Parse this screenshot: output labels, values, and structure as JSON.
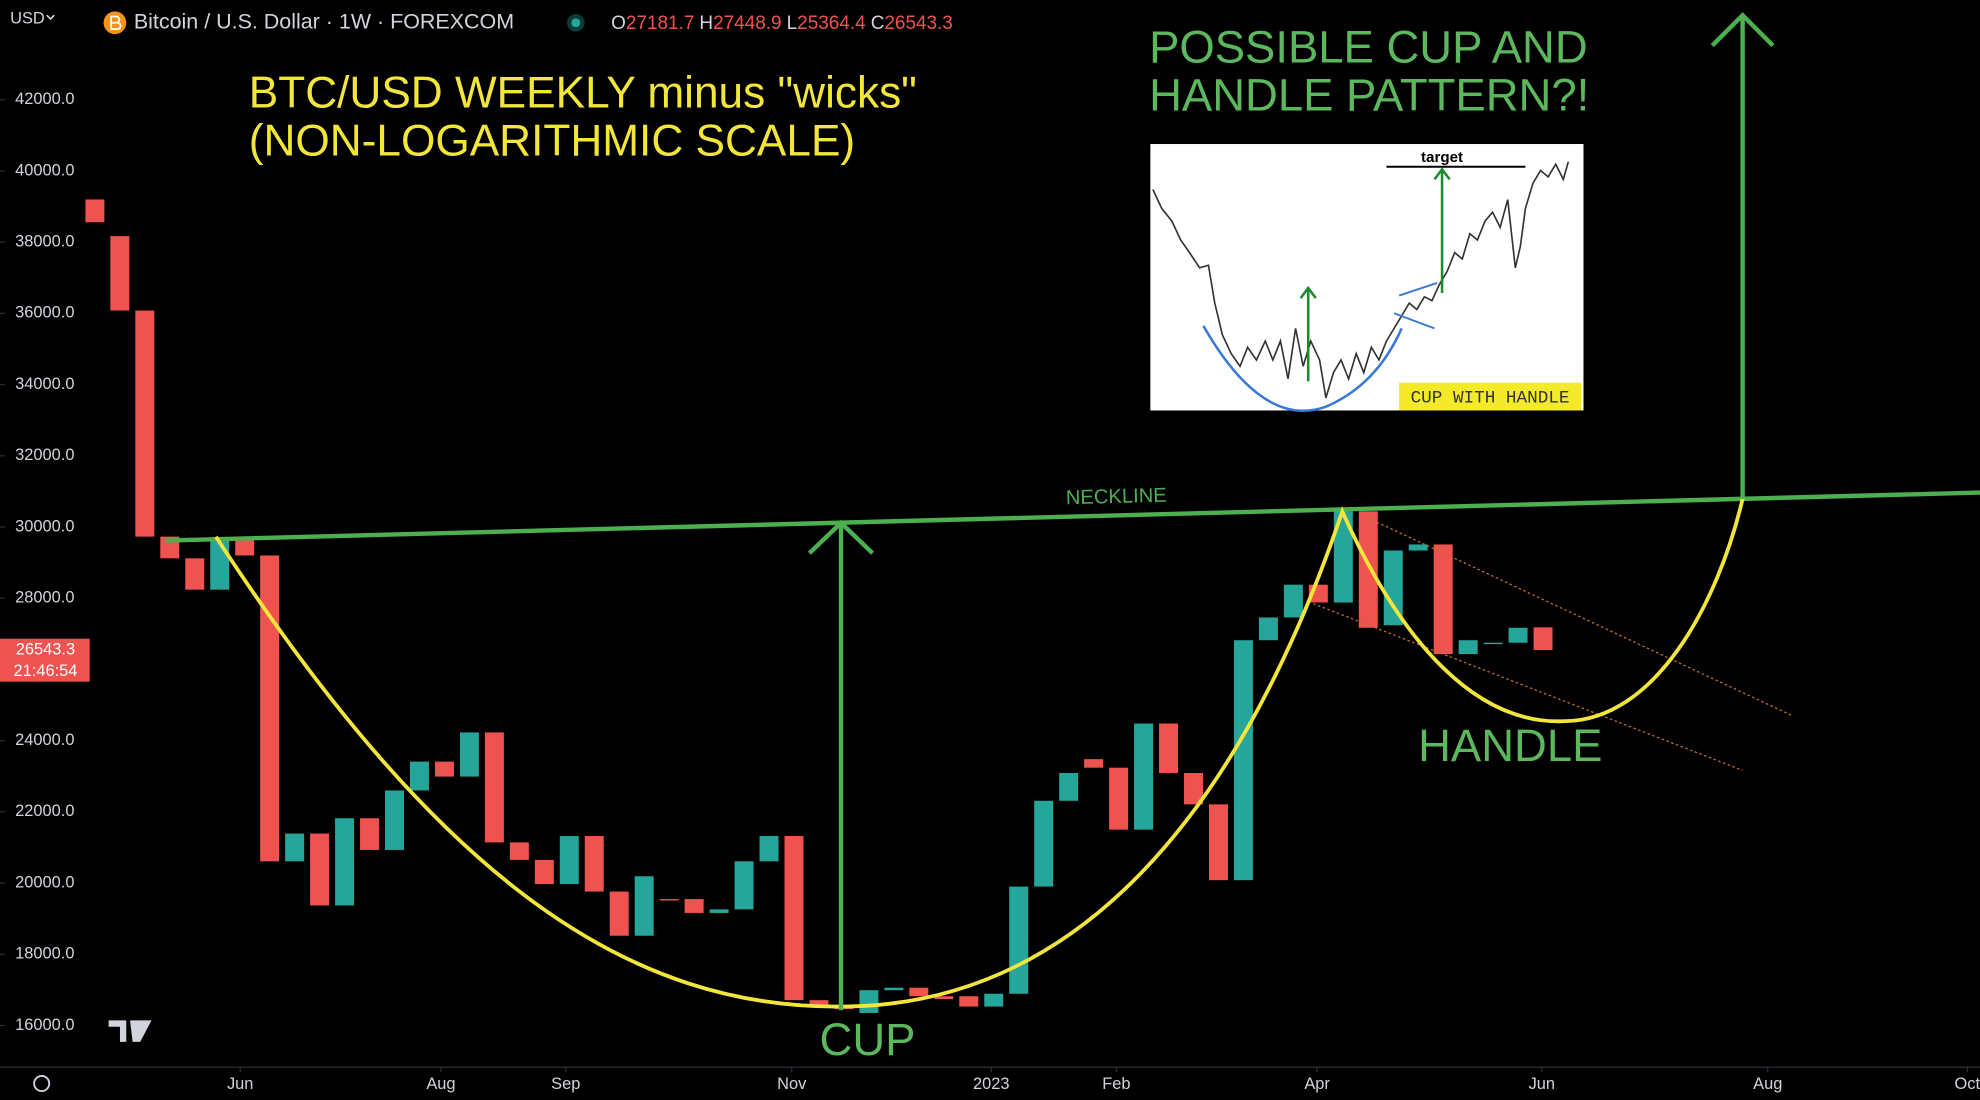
{
  "header": {
    "currency": "USD",
    "symbol": "Bitcoin / U.S. Dollar · 1W · FOREXCOM",
    "ohlc": [
      {
        "label": "O",
        "value": 27181.7
      },
      {
        "label": "H",
        "value": 27448.9
      },
      {
        "label": "L",
        "value": 25364.4
      },
      {
        "label": "C",
        "value": 26543.3
      }
    ]
  },
  "chart_data": {
    "type": "candlestick",
    "title": [
      "BTC/USD WEEKLY minus \"wicks\"",
      "(NON-LOGARITHMIC SCALE)"
    ],
    "pattern_note": [
      "POSSIBLE CUP AND",
      "HANDLE PATTERN?!"
    ],
    "annotations": {
      "neckline": "NECKLINE",
      "cup": "CUP",
      "handle": "HANDLE"
    },
    "inset": {
      "target": "target",
      "caption": "CUP WITH HANDLE"
    },
    "up_color": "#26a69a",
    "down_color": "#ef5350",
    "open": [
      39200,
      38170,
      36080,
      29730,
      29120,
      28240,
      29620,
      29200,
      20610,
      21390,
      19370,
      21820,
      20930,
      22600,
      23410,
      22990,
      24230,
      21140,
      20650,
      19970,
      21320,
      19760,
      18520,
      19550,
      19550,
      19160,
      19260,
      20610,
      21320,
      16710,
      16530,
      16350,
      16990,
      17060,
      16820,
      16820,
      16530,
      16890,
      19900,
      22310,
      23480,
      23240,
      21500,
      24480,
      23090,
      22210,
      20080,
      26820,
      27460,
      28380,
      27880,
      30440,
      27240,
      29340,
      29510,
      26430,
      26710,
      26750,
      27181.7
    ],
    "close": [
      38560,
      36080,
      29730,
      29120,
      28240,
      29620,
      29200,
      20610,
      21390,
      19370,
      21820,
      20930,
      22600,
      23410,
      22990,
      24230,
      21140,
      20650,
      19970,
      21320,
      19760,
      18520,
      20190,
      19510,
      19160,
      19260,
      20610,
      21320,
      16710,
      16530,
      16460,
      16990,
      17060,
      16820,
      16740,
      16530,
      16890,
      19900,
      22310,
      23090,
      23240,
      21500,
      24480,
      23090,
      22210,
      20080,
      26820,
      27460,
      28380,
      27880,
      30440,
      27170,
      29340,
      29510,
      26430,
      26820,
      26750,
      27170,
      26543.3
    ],
    "last_price": 26543.3,
    "countdown": "21:46:54",
    "ylim": [
      14830,
      44800
    ],
    "yticks": [
      {
        "value": 16000,
        "label": "16000.0"
      },
      {
        "value": 18000,
        "label": "18000.0"
      },
      {
        "value": 20000,
        "label": "20000.0"
      },
      {
        "value": 22000,
        "label": "22000.0"
      },
      {
        "value": 24000,
        "label": "24000.0"
      },
      {
        "value": 26000,
        "label": "26000.0"
      },
      {
        "value": 28000,
        "label": "28000.0"
      },
      {
        "value": 30000,
        "label": "30000.0"
      },
      {
        "value": 32000,
        "label": "32000.0"
      },
      {
        "value": 34000,
        "label": "34000.0"
      },
      {
        "value": 36000,
        "label": "36000.0"
      },
      {
        "value": 38000,
        "label": "38000.0"
      },
      {
        "value": 40000,
        "label": "40000.0"
      },
      {
        "value": 42000,
        "label": "42000.0"
      }
    ],
    "xlim": [
      -3.8,
      75.5
    ],
    "xticks": [
      {
        "value": 5.82,
        "label": "Jun"
      },
      {
        "value": 13.86,
        "label": "Aug"
      },
      {
        "value": 18.86,
        "label": "Sep"
      },
      {
        "value": 27.91,
        "label": "Nov"
      },
      {
        "value": 35.9,
        "label": "2023"
      },
      {
        "value": 40.91,
        "label": "Feb"
      },
      {
        "value": 48.95,
        "label": "Apr"
      },
      {
        "value": 57.95,
        "label": "Jun"
      },
      {
        "value": 67.0,
        "label": "Aug"
      },
      {
        "value": 74.99,
        "label": "Oct"
      }
    ]
  }
}
